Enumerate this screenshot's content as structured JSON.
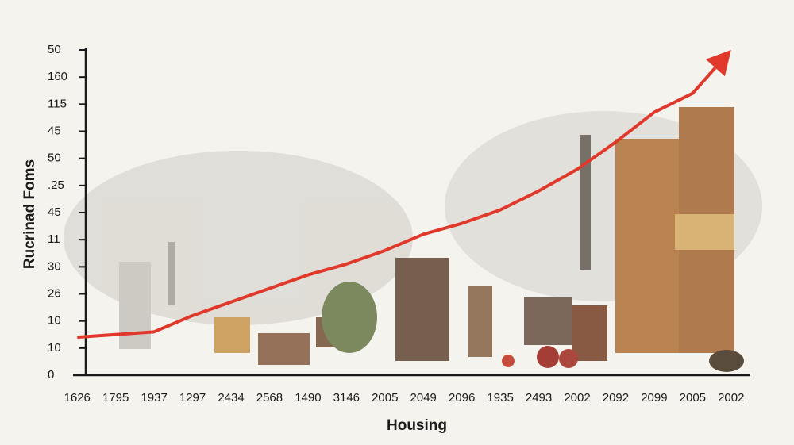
{
  "chart_data": {
    "type": "line",
    "y_label": "Rucrinad Foms",
    "x_label": "Housing",
    "categories": [
      "1626",
      "1795",
      "1937",
      "1297",
      "2434",
      "2568",
      "1490",
      "3146",
      "2005",
      "2049",
      "2096",
      "1935",
      "2493",
      "2002",
      "2092",
      "2099",
      "2005",
      "2002"
    ],
    "series": [
      {
        "color": "#e0392b",
        "values": [
          1.4,
          1.5,
          1.6,
          2.2,
          2.7,
          3.2,
          3.7,
          4.1,
          4.6,
          5.2,
          5.6,
          6.1,
          6.8,
          7.6,
          8.6,
          9.7,
          10.4,
          12
        ]
      }
    ],
    "ylim": [
      0,
      12
    ],
    "yticks": [
      0,
      {
        "value": 1,
        "label": "10"
      },
      {
        "value": 2,
        "label": "10"
      },
      {
        "value": 3,
        "label": "26"
      },
      {
        "value": 4,
        "label": "30"
      },
      {
        "value": 5,
        "label": "11"
      },
      {
        "value": 6,
        "label": "45"
      },
      {
        "value": 7,
        "label": ".25"
      },
      {
        "value": 8,
        "label": "50"
      },
      {
        "value": 9,
        "label": "45"
      },
      {
        "value": 10,
        "label": "115"
      },
      {
        "value": 11,
        "label": "160"
      },
      {
        "value": 12,
        "label": "50"
      }
    ]
  }
}
